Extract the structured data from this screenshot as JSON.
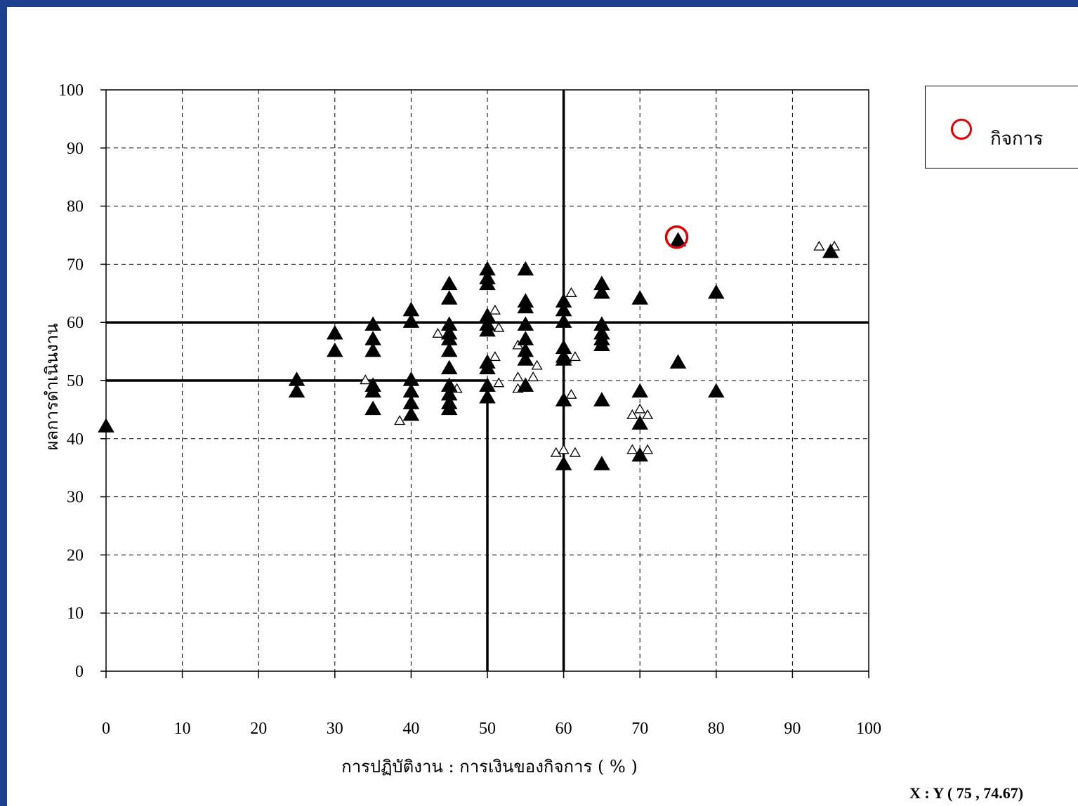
{
  "colors": {
    "background_frame": "#1c3f8e",
    "marker_primary": "#000000",
    "highlight": "#e00000"
  },
  "legend": {
    "label": "กิจการ",
    "marker_icon": "red-circle-icon"
  },
  "coordinate_readout": "X : Y ( 75 , 74.67)",
  "chart_data": {
    "type": "scatter",
    "title": "",
    "xlabel": "การปฏิบัติงาน : การเงินของกิจการ ( % )",
    "ylabel": "ผลการดำเนินงาน",
    "xlim": [
      0,
      100
    ],
    "ylim": [
      0,
      100
    ],
    "xticks": [
      "0",
      "10",
      "20",
      "30",
      "40",
      "50",
      "60",
      "70",
      "80",
      "90",
      "100"
    ],
    "yticks": [
      "0",
      "10",
      "20",
      "30",
      "40",
      "50",
      "60",
      "70",
      "80",
      "90",
      "100"
    ],
    "grid": true,
    "reference_lines": [
      {
        "orientation": "horizontal",
        "y": 60,
        "x_from": 0,
        "x_to": 100
      },
      {
        "orientation": "horizontal",
        "y": 50,
        "x_from": 0,
        "x_to": 50
      },
      {
        "orientation": "vertical",
        "x": 60,
        "y_from": 0,
        "y_to": 100
      },
      {
        "orientation": "vertical",
        "x": 50,
        "y_from": 0,
        "y_to": 50
      }
    ],
    "series": [
      {
        "marker": "filled-triangle",
        "points": [
          [
            0,
            42
          ],
          [
            25,
            50
          ],
          [
            25,
            48
          ],
          [
            30,
            58
          ],
          [
            30,
            55
          ],
          [
            35,
            59.5
          ],
          [
            35,
            57
          ],
          [
            35,
            55
          ],
          [
            35,
            49
          ],
          [
            35,
            48
          ],
          [
            35,
            45
          ],
          [
            40,
            62
          ],
          [
            40,
            60
          ],
          [
            40,
            50
          ],
          [
            40,
            48
          ],
          [
            40,
            46
          ],
          [
            40,
            44
          ],
          [
            45,
            66.5
          ],
          [
            45,
            64
          ],
          [
            45,
            59.5
          ],
          [
            45,
            58
          ],
          [
            45,
            57
          ],
          [
            45,
            55
          ],
          [
            45,
            52
          ],
          [
            45,
            49
          ],
          [
            45,
            47.5
          ],
          [
            45,
            46
          ],
          [
            45,
            45
          ],
          [
            50,
            69
          ],
          [
            50,
            67.5
          ],
          [
            50,
            66.5
          ],
          [
            50,
            61
          ],
          [
            50,
            59.5
          ],
          [
            50,
            58.5
          ],
          [
            50,
            53
          ],
          [
            50,
            52
          ],
          [
            50,
            49
          ],
          [
            50,
            47
          ],
          [
            55,
            69
          ],
          [
            55,
            63.5
          ],
          [
            55,
            62.5
          ],
          [
            55,
            59.5
          ],
          [
            55,
            57
          ],
          [
            55,
            55
          ],
          [
            55,
            53.5
          ],
          [
            55,
            49
          ],
          [
            60,
            63.5
          ],
          [
            60,
            62
          ],
          [
            60,
            60
          ],
          [
            60,
            55.5
          ],
          [
            60,
            54
          ],
          [
            60,
            53.5
          ],
          [
            60,
            46.5
          ],
          [
            60,
            35.5
          ],
          [
            65,
            66.5
          ],
          [
            65,
            65
          ],
          [
            65,
            59.5
          ],
          [
            65,
            58
          ],
          [
            65,
            57
          ],
          [
            65,
            56
          ],
          [
            65,
            46.5
          ],
          [
            65,
            35.5
          ],
          [
            70,
            64
          ],
          [
            70,
            48
          ],
          [
            70,
            42.5
          ],
          [
            70,
            37
          ],
          [
            75,
            74
          ],
          [
            75,
            53
          ],
          [
            80,
            65
          ],
          [
            80,
            48
          ],
          [
            95,
            72
          ]
        ]
      },
      {
        "marker": "hollow-triangle",
        "points": [
          [
            34,
            50
          ],
          [
            38.5,
            43
          ],
          [
            43.5,
            58
          ],
          [
            46,
            48.5
          ],
          [
            51,
            62
          ],
          [
            51,
            54
          ],
          [
            51.5,
            49.5
          ],
          [
            51.5,
            59
          ],
          [
            54,
            56
          ],
          [
            54,
            50.5
          ],
          [
            54,
            48.5
          ],
          [
            56,
            50.5
          ],
          [
            56.5,
            52.5
          ],
          [
            59,
            37.5
          ],
          [
            60,
            38
          ],
          [
            61,
            65
          ],
          [
            61,
            47.5
          ],
          [
            61.5,
            54
          ],
          [
            61.5,
            37.5
          ],
          [
            69,
            44
          ],
          [
            69,
            38
          ],
          [
            70,
            45
          ],
          [
            71,
            44
          ],
          [
            71,
            38
          ],
          [
            93.5,
            73
          ],
          [
            95.5,
            73
          ]
        ]
      }
    ],
    "highlight_point": {
      "x": 75,
      "y": 74.67,
      "marker": "red-circle"
    }
  }
}
